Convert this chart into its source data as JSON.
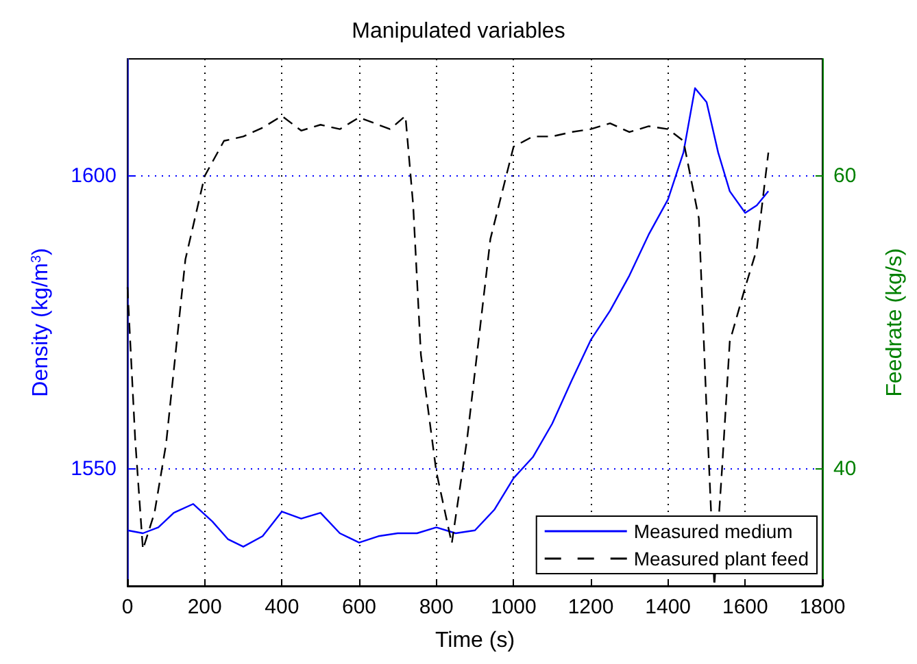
{
  "chart_data": {
    "type": "line",
    "title": "Manipulated variables",
    "xlabel": "Time (s)",
    "ylabel": "Density (kg/m$^{3}$)",
    "y2label": "Feedrate (kg/s)",
    "xlim": [
      0,
      1800
    ],
    "xticks": [
      0,
      200,
      400,
      600,
      800,
      1000,
      1200,
      1400,
      1600,
      1800
    ],
    "ylim": [
      1530,
      1620
    ],
    "yticks": [
      1550,
      1600
    ],
    "y2lim": [
      32,
      68
    ],
    "y2ticks": [
      40,
      60
    ],
    "grid": true,
    "legend": "bottom right",
    "marker": "none",
    "series": [
      {
        "name": "Measured medium",
        "color": "#0000ff",
        "line_style": "solid",
        "x": [
          0,
          40,
          80,
          120,
          170,
          220,
          260,
          300,
          350,
          400,
          450,
          500,
          550,
          600,
          650,
          700,
          750,
          800,
          850,
          900,
          950,
          1000,
          1050,
          1100,
          1150,
          1200,
          1250,
          1300,
          1350,
          1400,
          1440,
          1470,
          1500,
          1530,
          1560,
          1600,
          1630,
          1660
        ],
        "values": [
          1539.5,
          1539,
          1540,
          1542.5,
          1544,
          1541,
          1538,
          1536.7,
          1538.5,
          1542.7,
          1541.5,
          1542.5,
          1539,
          1537.4,
          1538.5,
          1539,
          1539,
          1540,
          1539,
          1539.5,
          1543,
          1548.4,
          1552,
          1557.7,
          1565,
          1572,
          1577,
          1583,
          1590,
          1596,
          1604,
          1615,
          1612.6,
          1604,
          1597.4,
          1593.7,
          1595,
          1597.4
        ]
      },
      {
        "name": "Measured plant feed",
        "color": "#000000",
        "line_style": "dashed",
        "axis": "y2",
        "x": [
          0,
          20,
          40,
          70,
          100,
          150,
          200,
          250,
          300,
          350,
          400,
          450,
          500,
          550,
          600,
          650,
          680,
          720,
          740,
          760,
          800,
          840,
          880,
          940,
          1000,
          1050,
          1100,
          1150,
          1200,
          1250,
          1300,
          1350,
          1400,
          1440,
          1480,
          1500,
          1520,
          1540,
          1560,
          1600,
          1630,
          1660
        ],
        "values": [
          52.4,
          42,
          34.5,
          37,
          41.7,
          54.3,
          60,
          62.4,
          62.7,
          63.3,
          64.1,
          63.1,
          63.5,
          63.2,
          64,
          63.5,
          63.2,
          64.1,
          58,
          47.8,
          39.8,
          34.9,
          42.1,
          55.7,
          62,
          62.7,
          62.7,
          63,
          63.2,
          63.6,
          63,
          63.4,
          63.2,
          62.4,
          57.1,
          44,
          32,
          40,
          48.7,
          52.4,
          55,
          61.6
        ]
      }
    ]
  }
}
